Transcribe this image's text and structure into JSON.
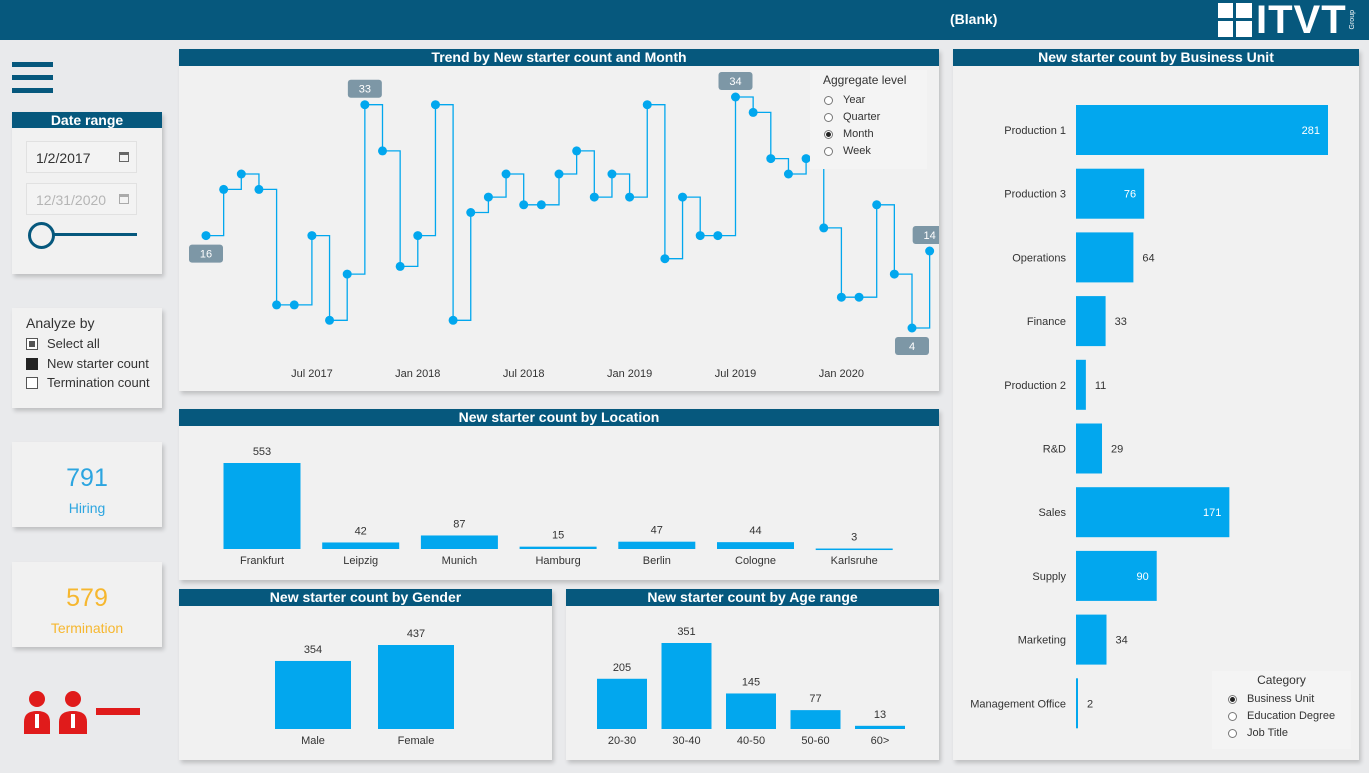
{
  "header": {
    "slicer_value": "(Blank)",
    "logo_text": "ITVT",
    "logo_sub": "Group"
  },
  "colors": {
    "brand": "#06587d",
    "bar": "#02a7ee",
    "hiring": "#2ca5e0",
    "termination": "#f6b72f",
    "icon_red": "#e01b1b"
  },
  "date_range": {
    "title": "Date range",
    "start": "1/2/2017",
    "end": "12/31/2020",
    "calendar_icon": "calendar-icon"
  },
  "analyze_by": {
    "title": "Analyze by",
    "options": [
      {
        "label": "Select all",
        "state": "partial"
      },
      {
        "label": "New starter count",
        "state": "checked"
      },
      {
        "label": "Termination count",
        "state": "unchecked"
      }
    ]
  },
  "kpis": {
    "hiring": {
      "value": "791",
      "label": "Hiring"
    },
    "termination": {
      "value": "579",
      "label": "Termination"
    }
  },
  "aggregate": {
    "title": "Aggregate level",
    "options": [
      "Year",
      "Quarter",
      "Month",
      "Week"
    ],
    "selected": "Month"
  },
  "category": {
    "title": "Category",
    "options": [
      "Business Unit",
      "Education Degree",
      "Job Title"
    ],
    "selected": "Business Unit"
  },
  "chart_data": [
    {
      "id": "trend",
      "type": "line",
      "title": "Trend by New starter count and Month",
      "x_ticks": [
        "Jul 2017",
        "Jan 2018",
        "Jul 2018",
        "Jan 2019",
        "Jul 2019",
        "Jan 2020"
      ],
      "values": [
        16,
        22,
        24,
        22,
        7,
        7,
        16,
        5,
        11,
        33,
        27,
        12,
        16,
        33,
        5,
        19,
        21,
        24,
        20,
        20,
        24,
        27,
        21,
        24,
        21,
        33,
        13,
        21,
        16,
        16,
        34,
        32,
        26,
        24,
        26,
        17,
        8,
        8,
        20,
        11,
        4,
        14
      ],
      "point_labels": [
        {
          "index": 0,
          "text": "16"
        },
        {
          "index": 9,
          "text": "33"
        },
        {
          "index": 30,
          "text": "34"
        },
        {
          "index": 40,
          "text": "4"
        },
        {
          "index": 41,
          "text": "14"
        }
      ],
      "ylim": [
        4,
        34
      ]
    },
    {
      "id": "location",
      "type": "bar",
      "title": "New starter count by Location",
      "categories": [
        "Frankfurt",
        "Leipzig",
        "Munich",
        "Hamburg",
        "Berlin",
        "Cologne",
        "Karlsruhe"
      ],
      "values": [
        553,
        42,
        87,
        15,
        47,
        44,
        3
      ]
    },
    {
      "id": "gender",
      "type": "bar",
      "title": "New starter count by Gender",
      "categories": [
        "Male",
        "Female"
      ],
      "values": [
        354,
        437
      ]
    },
    {
      "id": "age",
      "type": "bar",
      "title": "New starter count by Age range",
      "categories": [
        "20-30",
        "30-40",
        "40-50",
        "50-60",
        "60>"
      ],
      "values": [
        205,
        351,
        145,
        77,
        13
      ]
    },
    {
      "id": "bu",
      "type": "bar",
      "orientation": "horizontal",
      "title": "New starter count by Business Unit",
      "categories": [
        "Production 1",
        "Production 3",
        "Operations",
        "Finance",
        "Production 2",
        "R&D",
        "Sales",
        "Supply",
        "Marketing",
        "Management Office"
      ],
      "values": [
        281,
        76,
        64,
        33,
        11,
        29,
        171,
        90,
        34,
        2
      ]
    }
  ]
}
